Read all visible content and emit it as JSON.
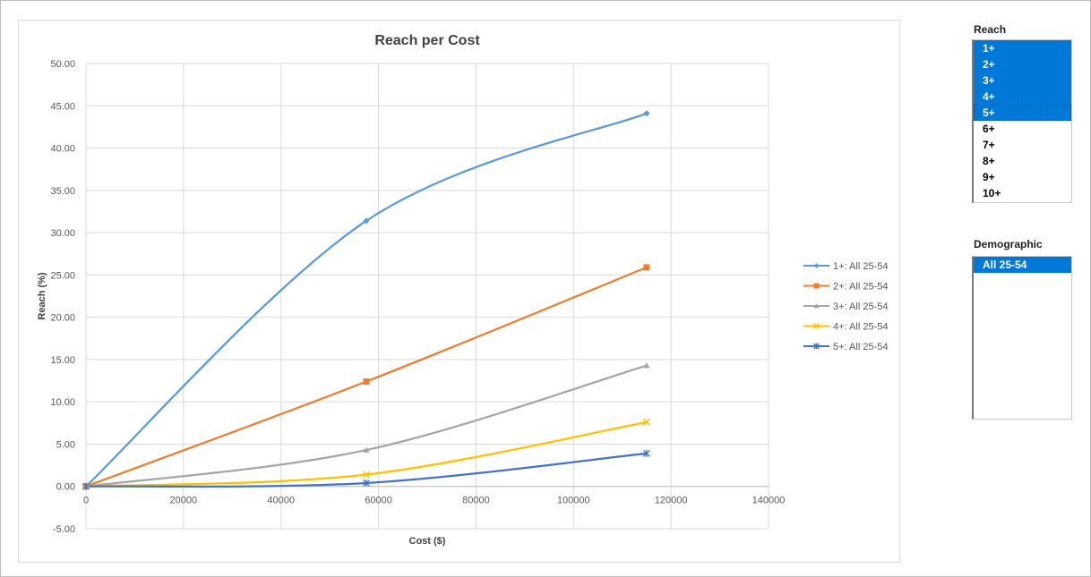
{
  "colors": {
    "accent": "#0078d7",
    "series": [
      "#5b9bd5",
      "#ed7d31",
      "#a5a5a5",
      "#ffc000",
      "#4472c4"
    ]
  },
  "slicers": {
    "reach": {
      "title": "Reach",
      "items": [
        {
          "label": "1+",
          "selected": true
        },
        {
          "label": "2+",
          "selected": true
        },
        {
          "label": "3+",
          "selected": true
        },
        {
          "label": "4+",
          "selected": true
        },
        {
          "label": "5+",
          "selected": true,
          "focused": true
        },
        {
          "label": "6+",
          "selected": false
        },
        {
          "label": "7+",
          "selected": false
        },
        {
          "label": "8+",
          "selected": false
        },
        {
          "label": "9+",
          "selected": false
        },
        {
          "label": "10+",
          "selected": false
        }
      ]
    },
    "demographic": {
      "title": "Demographic",
      "items": [
        {
          "label": "All 25-54",
          "selected": true
        }
      ]
    }
  },
  "chart_data": {
    "type": "line",
    "title": "Reach per Cost",
    "xlabel": "Cost ($)",
    "ylabel": "Reach (%)",
    "xlim": [
      0,
      140000
    ],
    "ylim": [
      -5,
      50
    ],
    "x_ticks": [
      "0",
      "20000",
      "40000",
      "60000",
      "80000",
      "100000",
      "120000",
      "140000"
    ],
    "y_ticks": [
      "-5.00",
      "0.00",
      "5.00",
      "10.00",
      "15.00",
      "20.00",
      "25.00",
      "30.00",
      "35.00",
      "40.00",
      "45.00",
      "50.00"
    ],
    "grid": true,
    "smooth": true,
    "legend_position": "right",
    "series": [
      {
        "name": "1+: All 25-54",
        "marker": "diamond",
        "x": [
          0,
          57500,
          115000
        ],
        "y": [
          0,
          31.4,
          44.1
        ]
      },
      {
        "name": "2+: All 25-54",
        "marker": "square",
        "x": [
          0,
          57500,
          115000
        ],
        "y": [
          0,
          12.4,
          25.9
        ]
      },
      {
        "name": "3+: All 25-54",
        "marker": "triangle",
        "x": [
          0,
          57500,
          115000
        ],
        "y": [
          0,
          4.3,
          14.3
        ]
      },
      {
        "name": "4+: All 25-54",
        "marker": "x",
        "x": [
          0,
          57500,
          115000
        ],
        "y": [
          0,
          1.4,
          7.6
        ]
      },
      {
        "name": "5+: All 25-54",
        "marker": "star",
        "x": [
          0,
          57500,
          115000
        ],
        "y": [
          0,
          0.4,
          3.9
        ]
      }
    ]
  }
}
